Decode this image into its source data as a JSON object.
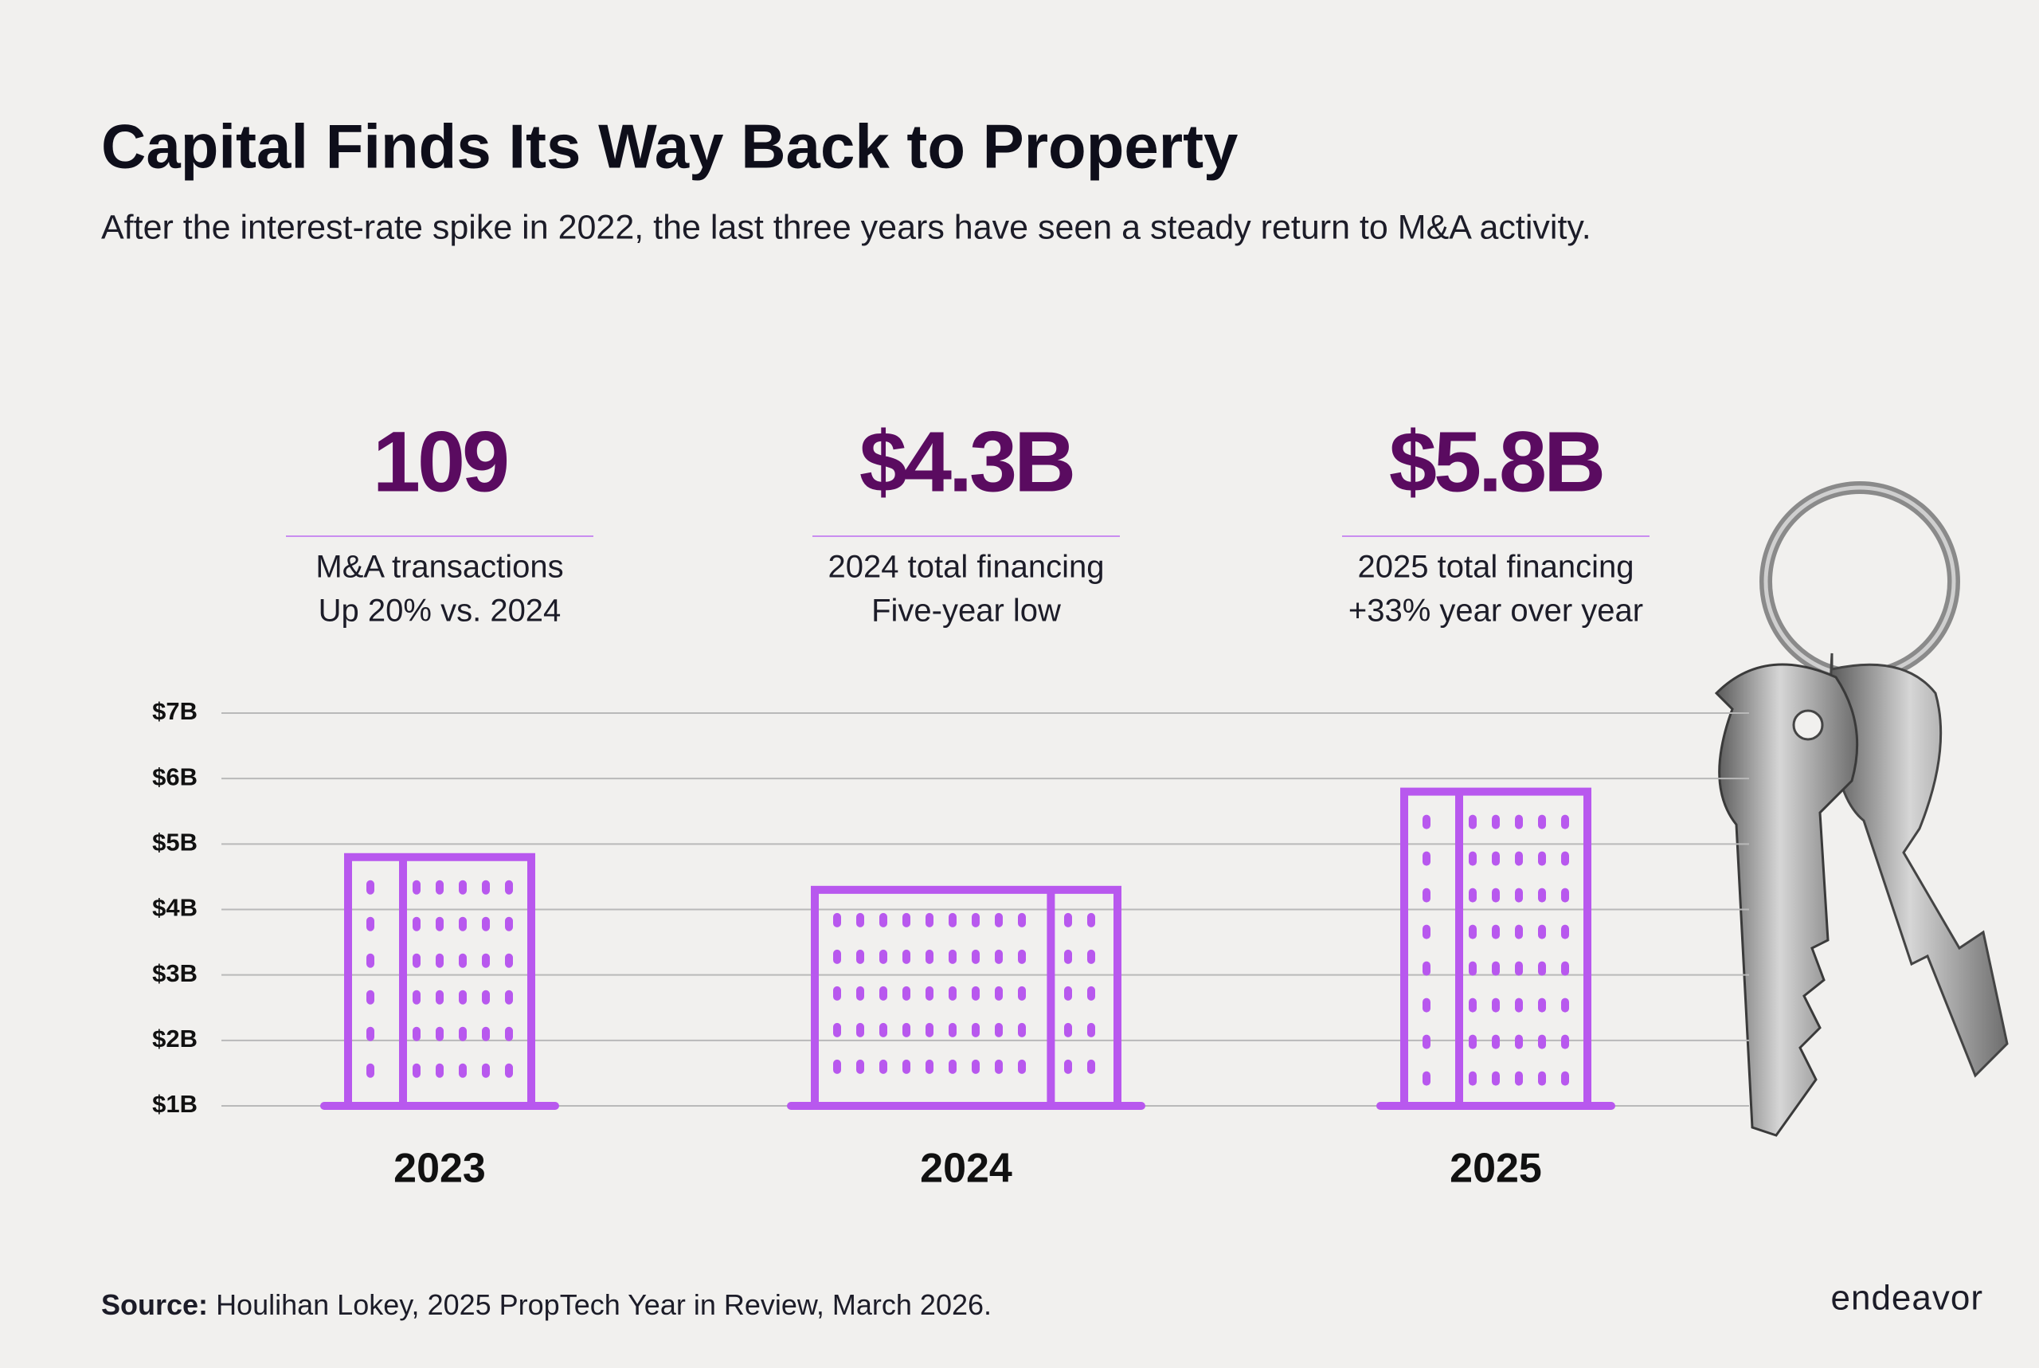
{
  "title": "Capital Finds Its Way Back to Property",
  "subtitle": "After the interest-rate spike in 2022, the last three years have seen a steady return to M&A activity.",
  "stats": [
    {
      "figure": "109",
      "lines": [
        "M&A transactions",
        "Up 20% vs. 2024"
      ]
    },
    {
      "figure": "$4.3B",
      "lines": [
        "2024 total financing",
        "Five-year low"
      ]
    },
    {
      "figure": "$5.8B",
      "lines": [
        "2025 total financing",
        "+33% year over year"
      ]
    }
  ],
  "chart_data": {
    "type": "bar",
    "categories": [
      "2023",
      "2024",
      "2025"
    ],
    "values": [
      4.8,
      4.3,
      5.8
    ],
    "color": "#b858ee",
    "ylim": [
      1,
      7
    ],
    "yticks": [
      {
        "value": 1,
        "label": "$1B"
      },
      {
        "value": 2,
        "label": "$2B"
      },
      {
        "value": 3,
        "label": "$3B"
      },
      {
        "value": 4,
        "label": "$4B"
      },
      {
        "value": 5,
        "label": "$5B"
      },
      {
        "value": 6,
        "label": "$6B"
      },
      {
        "value": 7,
        "label": "$7B"
      }
    ],
    "grid": true
  },
  "source": {
    "label": "Source:",
    "text": "Houlihan Lokey, 2025 PropTech Year in Review, March 2026."
  },
  "logo": "endeavor"
}
